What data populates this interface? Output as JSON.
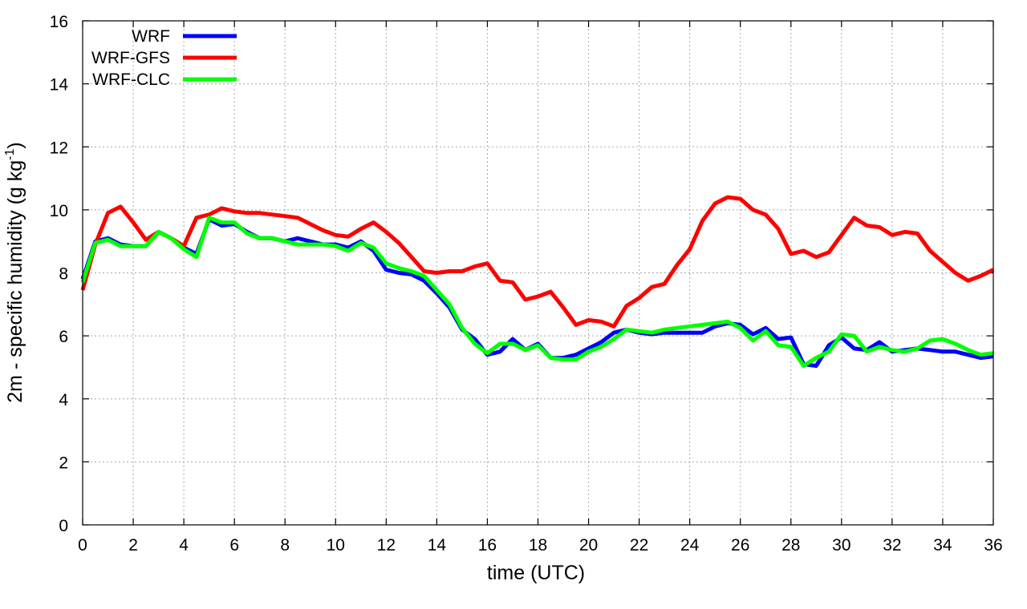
{
  "chart_data": {
    "type": "line",
    "xlabel": "time (UTC)",
    "ylabel": "2m - specific humidity (g kg",
    "ylabel_sup": "-1",
    "ylabel_close": ")",
    "xlim": [
      0,
      36
    ],
    "ylim": [
      0,
      16
    ],
    "x_ticks": [
      "0",
      "2",
      "4",
      "6",
      "8",
      "10",
      "12",
      "14",
      "16",
      "18",
      "20",
      "22",
      "24",
      "26",
      "28",
      "30",
      "32",
      "34",
      "36"
    ],
    "y_ticks": [
      "0",
      "2",
      "4",
      "6",
      "8",
      "10",
      "12",
      "14",
      "16"
    ],
    "grid": true,
    "legend_position": "top-left",
    "x": [
      0,
      0.5,
      1,
      1.5,
      2,
      2.5,
      3,
      3.5,
      4,
      4.5,
      5,
      5.5,
      6,
      6.5,
      7,
      7.5,
      8,
      8.5,
      9,
      9.5,
      10,
      10.5,
      11,
      11.5,
      12,
      12.5,
      13,
      13.5,
      14,
      14.5,
      15,
      15.5,
      16,
      16.5,
      17,
      17.5,
      18,
      18.5,
      19,
      19.5,
      20,
      20.5,
      21,
      21.5,
      22,
      22.5,
      23,
      23.5,
      24,
      24.5,
      25,
      25.5,
      26,
      26.5,
      27,
      27.5,
      28,
      28.5,
      29,
      29.5,
      30,
      30.5,
      31,
      31.5,
      32,
      32.5,
      33,
      33.5,
      34,
      34.5,
      35,
      35.5,
      36
    ],
    "series": [
      {
        "name": "WRF",
        "color": "#0000ff",
        "values": [
          7.8,
          9.0,
          9.1,
          8.9,
          8.85,
          8.85,
          9.3,
          9.1,
          8.8,
          8.6,
          9.7,
          9.5,
          9.55,
          9.3,
          9.1,
          9.1,
          9.0,
          9.1,
          9.0,
          8.9,
          8.9,
          8.8,
          9.0,
          8.7,
          8.1,
          8.0,
          7.95,
          7.75,
          7.35,
          6.9,
          6.2,
          5.9,
          5.4,
          5.5,
          5.9,
          5.55,
          5.75,
          5.3,
          5.3,
          5.4,
          5.6,
          5.8,
          6.1,
          6.2,
          6.1,
          6.05,
          6.1,
          6.1,
          6.1,
          6.1,
          6.3,
          6.4,
          6.35,
          6.05,
          6.25,
          5.9,
          5.95,
          5.1,
          5.05,
          5.7,
          5.95,
          5.6,
          5.55,
          5.8,
          5.5,
          5.55,
          5.6,
          5.55,
          5.5,
          5.5,
          5.4,
          5.3,
          5.35
        ]
      },
      {
        "name": "WRF-GFS",
        "color": "#ff0000",
        "values": [
          7.45,
          8.9,
          9.9,
          10.1,
          9.6,
          9.05,
          9.3,
          9.1,
          8.85,
          9.75,
          9.85,
          10.05,
          9.95,
          9.9,
          9.9,
          9.85,
          9.8,
          9.75,
          9.55,
          9.35,
          9.2,
          9.15,
          9.4,
          9.6,
          9.3,
          8.95,
          8.5,
          8.05,
          8.0,
          8.05,
          8.05,
          8.2,
          8.3,
          7.75,
          7.7,
          7.15,
          7.25,
          7.4,
          6.9,
          6.35,
          6.5,
          6.45,
          6.3,
          6.95,
          7.2,
          7.55,
          7.65,
          8.25,
          8.75,
          9.65,
          10.2,
          10.4,
          10.35,
          10.0,
          9.85,
          9.4,
          8.6,
          8.7,
          8.5,
          8.65,
          9.2,
          9.75,
          9.5,
          9.45,
          9.2,
          9.3,
          9.25,
          8.7,
          8.35,
          8.0,
          7.75,
          7.9,
          8.1
        ]
      },
      {
        "name": "WRF-CLC",
        "color": "#00ff00",
        "values": [
          7.7,
          8.95,
          9.05,
          8.85,
          8.85,
          8.85,
          9.3,
          9.1,
          8.75,
          8.5,
          9.75,
          9.6,
          9.6,
          9.25,
          9.1,
          9.1,
          9.0,
          8.9,
          8.9,
          8.9,
          8.85,
          8.7,
          8.95,
          8.8,
          8.3,
          8.15,
          8.05,
          7.9,
          7.45,
          7.0,
          6.25,
          5.75,
          5.45,
          5.75,
          5.75,
          5.55,
          5.7,
          5.3,
          5.25,
          5.25,
          5.5,
          5.65,
          5.9,
          6.2,
          6.15,
          6.1,
          6.2,
          6.25,
          6.3,
          6.35,
          6.4,
          6.45,
          6.25,
          5.85,
          6.15,
          5.7,
          5.65,
          5.05,
          5.3,
          5.5,
          6.05,
          6.0,
          5.5,
          5.65,
          5.55,
          5.5,
          5.6,
          5.85,
          5.9,
          5.75,
          5.55,
          5.4,
          5.45
        ]
      }
    ]
  }
}
